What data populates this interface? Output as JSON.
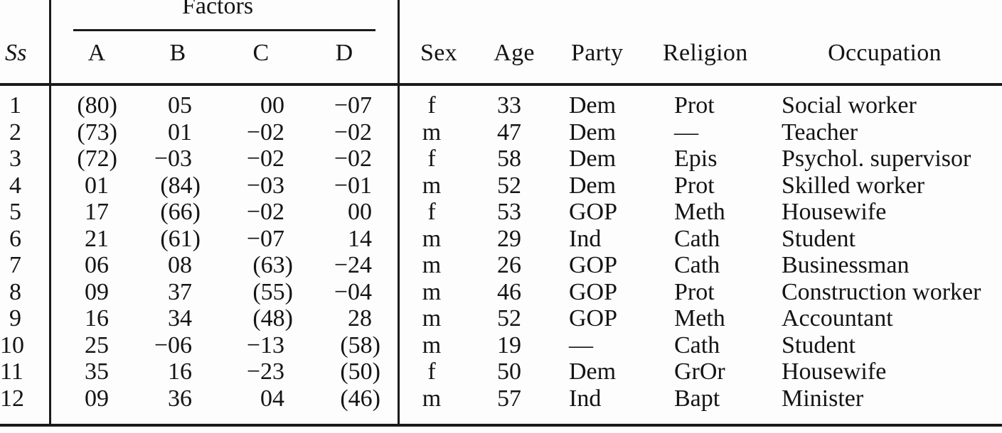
{
  "colors": {
    "background": "#fdfdfd",
    "text": "#141414",
    "rule": "#1a1a1a"
  },
  "header": {
    "ss": "Ss",
    "factors_group": "Factors",
    "factor_columns": [
      "A",
      "B",
      "C",
      "D"
    ],
    "demo_columns": [
      "Sex",
      "Age",
      "Party",
      "Religion",
      "Occupation"
    ]
  },
  "rows": [
    {
      "ss": "1",
      "factor_a": "(80)",
      "factor_b": "05",
      "factor_c": "00",
      "factor_d": "−07",
      "sex": "f",
      "age": "33",
      "party": "Dem",
      "religion": "Prot",
      "occupation": "Social worker"
    },
    {
      "ss": "2",
      "factor_a": "(73)",
      "factor_b": "01",
      "factor_c": "−02",
      "factor_d": "−02",
      "sex": "m",
      "age": "47",
      "party": "Dem",
      "religion": "—",
      "occupation": "Teacher"
    },
    {
      "ss": "3",
      "factor_a": "(72)",
      "factor_b": "−03",
      "factor_c": "−02",
      "factor_d": "−02",
      "sex": "f",
      "age": "58",
      "party": "Dem",
      "religion": "Epis",
      "occupation": "Psychol. supervisor"
    },
    {
      "ss": "4",
      "factor_a": "01",
      "factor_b": "(84)",
      "factor_c": "−03",
      "factor_d": "−01",
      "sex": "m",
      "age": "52",
      "party": "Dem",
      "religion": "Prot",
      "occupation": "Skilled worker"
    },
    {
      "ss": "5",
      "factor_a": "17",
      "factor_b": "(66)",
      "factor_c": "−02",
      "factor_d": "00",
      "sex": "f",
      "age": "53",
      "party": "GOP",
      "religion": "Meth",
      "occupation": "Housewife"
    },
    {
      "ss": "6",
      "factor_a": "21",
      "factor_b": "(61)",
      "factor_c": "−07",
      "factor_d": "14",
      "sex": "m",
      "age": "29",
      "party": "Ind",
      "religion": "Cath",
      "occupation": "Student"
    },
    {
      "ss": "7",
      "factor_a": "06",
      "factor_b": "08",
      "factor_c": "(63)",
      "factor_d": "−24",
      "sex": "m",
      "age": "26",
      "party": "GOP",
      "religion": "Cath",
      "occupation": "Businessman"
    },
    {
      "ss": "8",
      "factor_a": "09",
      "factor_b": "37",
      "factor_c": "(55)",
      "factor_d": "−04",
      "sex": "m",
      "age": "46",
      "party": "GOP",
      "religion": "Prot",
      "occupation": "Construction worker"
    },
    {
      "ss": "9",
      "factor_a": "16",
      "factor_b": "34",
      "factor_c": "(48)",
      "factor_d": "28",
      "sex": "m",
      "age": "52",
      "party": "GOP",
      "religion": "Meth",
      "occupation": "Accountant"
    },
    {
      "ss": "10",
      "factor_a": "25",
      "factor_b": "−06",
      "factor_c": "−13",
      "factor_d": "(58)",
      "sex": "m",
      "age": "19",
      "party": "—",
      "religion": "Cath",
      "occupation": "Student"
    },
    {
      "ss": "11",
      "factor_a": "35",
      "factor_b": "16",
      "factor_c": "−23",
      "factor_d": "(50)",
      "sex": "f",
      "age": "50",
      "party": "Dem",
      "religion": "GrOr",
      "occupation": "Housewife"
    },
    {
      "ss": "12",
      "factor_a": "09",
      "factor_b": "36",
      "factor_c": "04",
      "factor_d": "(46)",
      "sex": "m",
      "age": "57",
      "party": "Ind",
      "religion": "Bapt",
      "occupation": "Minister"
    }
  ]
}
